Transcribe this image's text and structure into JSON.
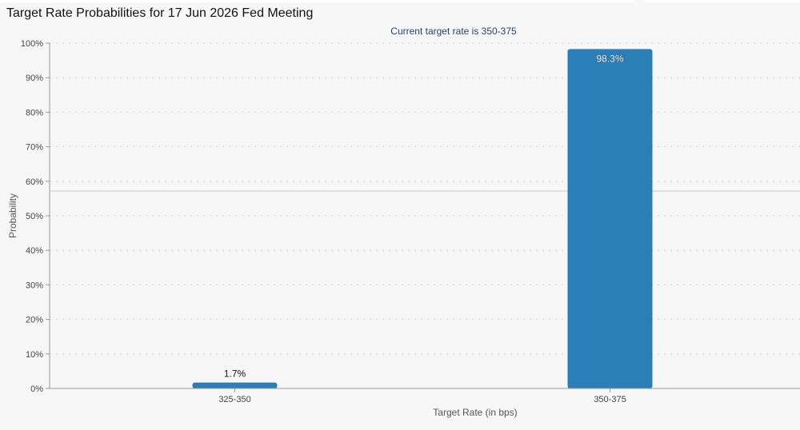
{
  "page": {
    "title": "Target Rate Probabilities for 17 Jun 2026 Fed Meeting"
  },
  "chart_data": {
    "type": "bar",
    "title": "Target Rate Probabilities for 17 Jun 2026 Fed Meeting",
    "subtitle": "Current target rate is 350-375",
    "xlabel": "Target Rate (in bps)",
    "ylabel": "Probability",
    "categories": [
      "325-350",
      "350-375"
    ],
    "values": [
      1.7,
      98.3
    ],
    "data_labels": [
      "1.7%",
      "98.3%"
    ],
    "ylim": [
      0,
      100
    ],
    "yticks": [
      0,
      10,
      20,
      30,
      40,
      50,
      60,
      70,
      80,
      90,
      100
    ],
    "ytick_labels": [
      "0%",
      "10%",
      "20%",
      "30%",
      "40%",
      "50%",
      "60%",
      "70%",
      "80%",
      "90%",
      "100%"
    ],
    "grid": "horizontal dotted",
    "legend": "none",
    "colors": {
      "bar": "#2a7fb8",
      "grid": "#cccccc",
      "axis": "#999999",
      "subtitle": "#2a3f6b"
    }
  }
}
